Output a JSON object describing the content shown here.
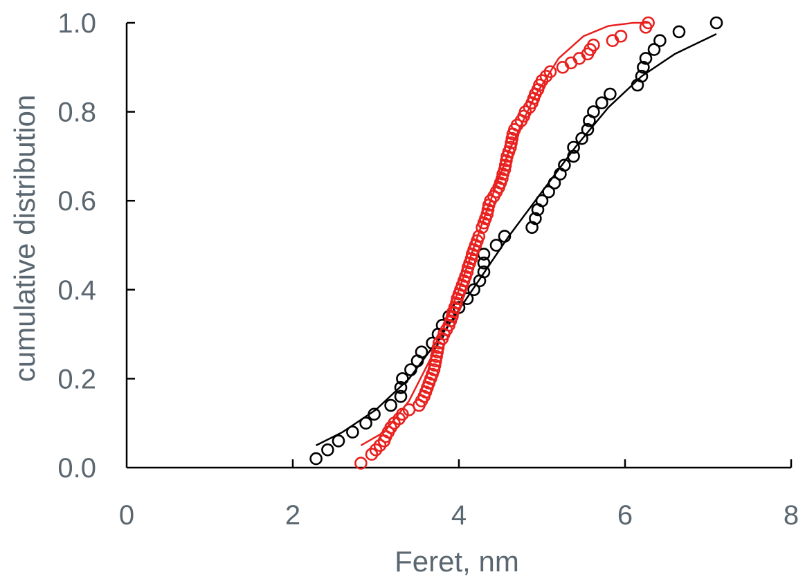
{
  "chart_data": {
    "type": "scatter",
    "title": "",
    "xlabel": "Feret, nm",
    "ylabel": "cumulative distribution",
    "xlim": [
      0,
      8
    ],
    "ylim": [
      0,
      1.0
    ],
    "x_ticks": [
      "0",
      "2",
      "4",
      "6",
      "8"
    ],
    "y_ticks": [
      "0.0",
      "0.2",
      "0.4",
      "0.6",
      "0.8",
      "1.0"
    ],
    "grid": false,
    "legend": "none",
    "series": [
      {
        "color": "#000000",
        "marker": "open-circle",
        "points": [
          [
            2.28,
            0.02
          ],
          [
            2.42,
            0.04
          ],
          [
            2.55,
            0.06
          ],
          [
            2.72,
            0.08
          ],
          [
            2.88,
            0.1
          ],
          [
            2.98,
            0.12
          ],
          [
            3.18,
            0.14
          ],
          [
            3.3,
            0.16
          ],
          [
            3.3,
            0.18
          ],
          [
            3.32,
            0.2
          ],
          [
            3.42,
            0.22
          ],
          [
            3.5,
            0.24
          ],
          [
            3.55,
            0.26
          ],
          [
            3.68,
            0.28
          ],
          [
            3.75,
            0.3
          ],
          [
            3.8,
            0.32
          ],
          [
            3.88,
            0.34
          ],
          [
            4.0,
            0.36
          ],
          [
            4.1,
            0.38
          ],
          [
            4.18,
            0.4
          ],
          [
            4.25,
            0.42
          ],
          [
            4.3,
            0.44
          ],
          [
            4.3,
            0.46
          ],
          [
            4.3,
            0.48
          ],
          [
            4.45,
            0.5
          ],
          [
            4.55,
            0.52
          ],
          [
            4.88,
            0.54
          ],
          [
            4.92,
            0.56
          ],
          [
            4.95,
            0.58
          ],
          [
            5.0,
            0.6
          ],
          [
            5.08,
            0.62
          ],
          [
            5.15,
            0.64
          ],
          [
            5.22,
            0.66
          ],
          [
            5.27,
            0.68
          ],
          [
            5.38,
            0.7
          ],
          [
            5.38,
            0.72
          ],
          [
            5.48,
            0.74
          ],
          [
            5.55,
            0.76
          ],
          [
            5.57,
            0.78
          ],
          [
            5.62,
            0.8
          ],
          [
            5.72,
            0.82
          ],
          [
            5.82,
            0.84
          ],
          [
            6.15,
            0.86
          ],
          [
            6.2,
            0.88
          ],
          [
            6.22,
            0.9
          ],
          [
            6.25,
            0.92
          ],
          [
            6.35,
            0.94
          ],
          [
            6.42,
            0.96
          ],
          [
            6.65,
            0.98
          ],
          [
            7.1,
            1.0
          ]
        ],
        "fit": [
          [
            2.28,
            0.05
          ],
          [
            2.6,
            0.08
          ],
          [
            3.0,
            0.13
          ],
          [
            3.4,
            0.2
          ],
          [
            3.8,
            0.3
          ],
          [
            4.2,
            0.41
          ],
          [
            4.6,
            0.52
          ],
          [
            5.0,
            0.62
          ],
          [
            5.4,
            0.72
          ],
          [
            5.8,
            0.81
          ],
          [
            6.2,
            0.88
          ],
          [
            6.6,
            0.93
          ],
          [
            7.1,
            0.975
          ]
        ]
      },
      {
        "color": "#e8201e",
        "marker": "open-circle",
        "points": [
          [
            2.82,
            0.01
          ],
          [
            2.95,
            0.03
          ],
          [
            3.0,
            0.04
          ],
          [
            3.05,
            0.05
          ],
          [
            3.1,
            0.06
          ],
          [
            3.12,
            0.07
          ],
          [
            3.15,
            0.08
          ],
          [
            3.18,
            0.09
          ],
          [
            3.22,
            0.1
          ],
          [
            3.28,
            0.11
          ],
          [
            3.32,
            0.12
          ],
          [
            3.4,
            0.13
          ],
          [
            3.52,
            0.14
          ],
          [
            3.55,
            0.15
          ],
          [
            3.58,
            0.16
          ],
          [
            3.6,
            0.17
          ],
          [
            3.62,
            0.18
          ],
          [
            3.64,
            0.19
          ],
          [
            3.66,
            0.2
          ],
          [
            3.68,
            0.21
          ],
          [
            3.7,
            0.22
          ],
          [
            3.71,
            0.23
          ],
          [
            3.72,
            0.24
          ],
          [
            3.73,
            0.25
          ],
          [
            3.74,
            0.26
          ],
          [
            3.75,
            0.27
          ],
          [
            3.76,
            0.28
          ],
          [
            3.8,
            0.29
          ],
          [
            3.82,
            0.3
          ],
          [
            3.85,
            0.31
          ],
          [
            3.88,
            0.32
          ],
          [
            3.9,
            0.33
          ],
          [
            3.92,
            0.34
          ],
          [
            3.93,
            0.35
          ],
          [
            3.95,
            0.36
          ],
          [
            3.97,
            0.37
          ],
          [
            3.98,
            0.38
          ],
          [
            4.0,
            0.39
          ],
          [
            4.02,
            0.4
          ],
          [
            4.04,
            0.41
          ],
          [
            4.06,
            0.42
          ],
          [
            4.08,
            0.43
          ],
          [
            4.1,
            0.44
          ],
          [
            4.11,
            0.45
          ],
          [
            4.13,
            0.46
          ],
          [
            4.15,
            0.47
          ],
          [
            4.16,
            0.48
          ],
          [
            4.18,
            0.49
          ],
          [
            4.2,
            0.5
          ],
          [
            4.22,
            0.51
          ],
          [
            4.24,
            0.52
          ],
          [
            4.28,
            0.54
          ],
          [
            4.3,
            0.55
          ],
          [
            4.32,
            0.56
          ],
          [
            4.34,
            0.57
          ],
          [
            4.35,
            0.58
          ],
          [
            4.36,
            0.59
          ],
          [
            4.38,
            0.6
          ],
          [
            4.42,
            0.61
          ],
          [
            4.45,
            0.62
          ],
          [
            4.48,
            0.63
          ],
          [
            4.5,
            0.64
          ],
          [
            4.52,
            0.65
          ],
          [
            4.53,
            0.66
          ],
          [
            4.55,
            0.67
          ],
          [
            4.56,
            0.68
          ],
          [
            4.57,
            0.69
          ],
          [
            4.58,
            0.7
          ],
          [
            4.6,
            0.71
          ],
          [
            4.62,
            0.72
          ],
          [
            4.63,
            0.73
          ],
          [
            4.64,
            0.74
          ],
          [
            4.65,
            0.75
          ],
          [
            4.67,
            0.76
          ],
          [
            4.7,
            0.77
          ],
          [
            4.75,
            0.78
          ],
          [
            4.78,
            0.79
          ],
          [
            4.8,
            0.8
          ],
          [
            4.85,
            0.81
          ],
          [
            4.88,
            0.82
          ],
          [
            4.9,
            0.83
          ],
          [
            4.92,
            0.84
          ],
          [
            4.95,
            0.85
          ],
          [
            4.97,
            0.86
          ],
          [
            5.0,
            0.87
          ],
          [
            5.05,
            0.88
          ],
          [
            5.1,
            0.89
          ],
          [
            5.25,
            0.9
          ],
          [
            5.35,
            0.91
          ],
          [
            5.45,
            0.92
          ],
          [
            5.55,
            0.93
          ],
          [
            5.58,
            0.94
          ],
          [
            5.62,
            0.95
          ],
          [
            5.85,
            0.96
          ],
          [
            5.95,
            0.97
          ],
          [
            6.25,
            0.99
          ],
          [
            6.28,
            1.0
          ]
        ],
        "fit": [
          [
            2.82,
            0.05
          ],
          [
            3.1,
            0.08
          ],
          [
            3.4,
            0.15
          ],
          [
            3.7,
            0.26
          ],
          [
            4.0,
            0.4
          ],
          [
            4.3,
            0.56
          ],
          [
            4.6,
            0.71
          ],
          [
            4.9,
            0.83
          ],
          [
            5.2,
            0.92
          ],
          [
            5.5,
            0.97
          ],
          [
            5.8,
            0.993
          ],
          [
            6.1,
            1.0
          ],
          [
            6.28,
            1.0
          ]
        ]
      }
    ]
  }
}
